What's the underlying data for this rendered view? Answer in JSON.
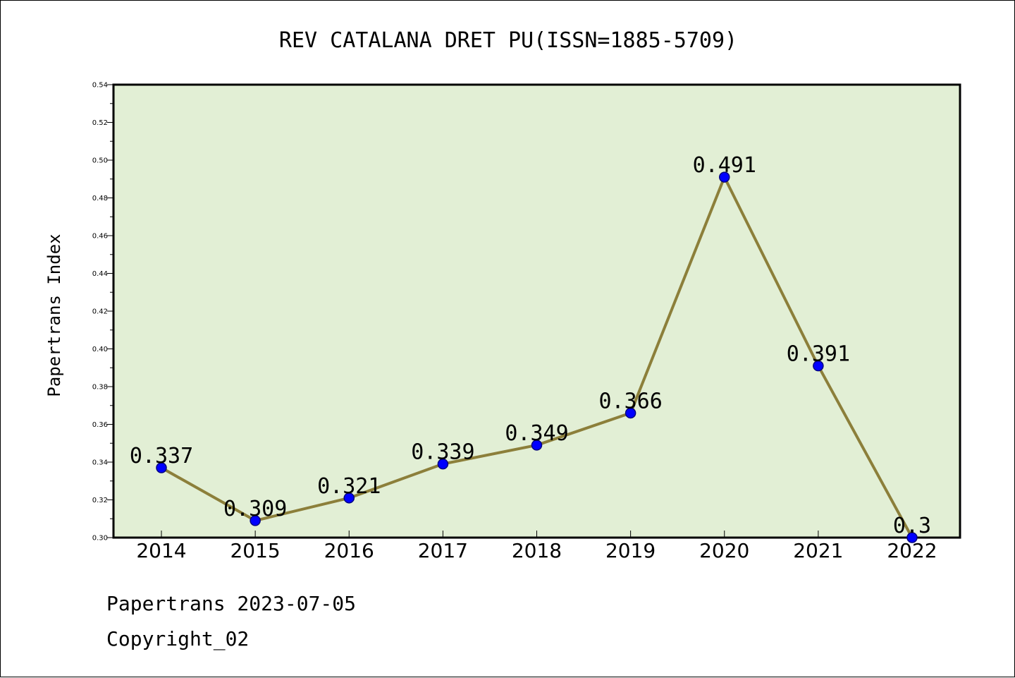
{
  "chart_data": {
    "type": "line",
    "title": "REV CATALANA DRET PU(ISSN=1885-5709)",
    "xlabel": "",
    "ylabel": "Papertrans Index",
    "categories": [
      "2014",
      "2015",
      "2016",
      "2017",
      "2018",
      "2019",
      "2020",
      "2021",
      "2022"
    ],
    "series": [
      {
        "values": [
          0.337,
          0.309,
          0.321,
          0.339,
          0.349,
          0.366,
          0.491,
          0.391,
          0.3
        ],
        "labels": [
          "0.337",
          "0.309",
          "0.321",
          "0.339",
          "0.349",
          "0.366",
          "0.491",
          "0.391",
          "0.3"
        ]
      }
    ],
    "ylim": [
      0.3,
      0.54
    ],
    "yticks": [
      "0.30",
      "0.32",
      "0.34",
      "0.36",
      "0.38",
      "0.40",
      "0.42",
      "0.44",
      "0.46",
      "0.48",
      "0.50",
      "0.52",
      "0.54"
    ],
    "grid": false,
    "legend": "none",
    "colors": {
      "plot_background": "#e2efd5",
      "line": "#8c7f3a",
      "marker_fill": "#0000ff",
      "marker_stroke": "#000080"
    }
  },
  "footer": {
    "line1": "Papertrans 2023-07-05",
    "line2": "Copyright_02"
  }
}
